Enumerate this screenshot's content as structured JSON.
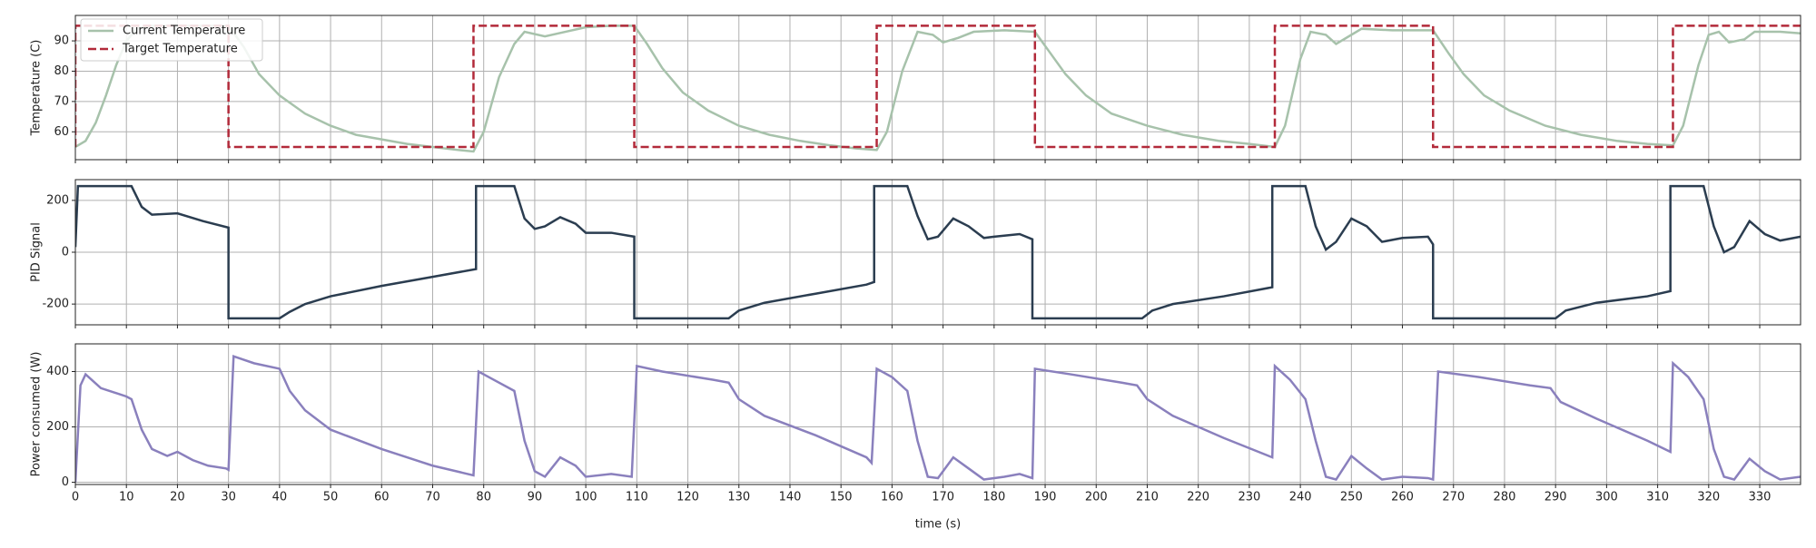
{
  "chart_data": [
    {
      "type": "line",
      "ylabel": "Temperature (C)",
      "legend": "upper left",
      "grid": true,
      "xlim": [
        0,
        338
      ],
      "xticks": [
        0,
        10,
        20,
        30,
        40,
        50,
        60,
        70,
        80,
        90,
        100,
        110,
        120,
        130,
        140,
        150,
        160,
        170,
        180,
        190,
        200,
        210,
        220,
        230,
        240,
        250,
        260,
        270,
        280,
        290,
        300,
        310,
        320,
        330
      ],
      "ylim": [
        50.8,
        98.4
      ],
      "yticks": [
        60,
        70,
        80,
        90
      ],
      "x": [
        0,
        0,
        2,
        4,
        6,
        8,
        10,
        12,
        15,
        20,
        25,
        30,
        30,
        33,
        36,
        40,
        45,
        50,
        55,
        60,
        65,
        70,
        75,
        78,
        78,
        80,
        83,
        86,
        88,
        92,
        96,
        100,
        105,
        109.5,
        109.5,
        112,
        115,
        119,
        124,
        130,
        136,
        142,
        148,
        153,
        157,
        157,
        159,
        162,
        165,
        168,
        170,
        173,
        176,
        182,
        188,
        188,
        191,
        194,
        198,
        203,
        210,
        217,
        224,
        230,
        235,
        235,
        237,
        240,
        242,
        245,
        247,
        250,
        252,
        258,
        266,
        266,
        269,
        272,
        276,
        281,
        288,
        295,
        302,
        308,
        313,
        313,
        315,
        318,
        320,
        322,
        324,
        327,
        329,
        334,
        338
      ],
      "series": [
        {
          "name": "Current Temperature",
          "color": "#a7c2ab",
          "linestyle": "solid",
          "values": [
            55,
            55,
            57,
            63,
            72,
            82,
            90,
            94,
            95,
            95,
            95,
            95,
            95,
            88,
            79,
            72,
            66,
            62,
            59,
            57.5,
            56,
            55,
            54,
            53.5,
            53.5,
            60,
            78,
            89,
            93,
            91.5,
            93,
            94.5,
            95,
            95,
            95,
            89,
            81,
            73,
            67,
            62,
            59,
            57,
            55.5,
            54.5,
            54,
            54,
            60,
            80,
            93,
            92,
            89.5,
            91,
            93,
            93.5,
            93,
            93,
            86,
            79,
            72,
            66,
            62,
            59,
            57,
            56,
            55,
            55,
            62,
            84,
            93,
            92,
            89,
            92,
            94,
            93.5,
            93.5,
            93.5,
            86,
            79,
            72,
            67,
            62,
            59,
            57,
            56,
            55.5,
            55.5,
            62,
            82,
            92,
            93,
            89.5,
            90.5,
            93,
            93,
            92.5
          ]
        },
        {
          "name": "Target Temperature",
          "color": "#b22a3a",
          "linestyle": "dashed",
          "values": [
            55,
            95,
            95,
            95,
            95,
            95,
            95,
            95,
            95,
            95,
            95,
            95,
            55,
            55,
            55,
            55,
            55,
            55,
            55,
            55,
            55,
            55,
            55,
            55,
            95,
            95,
            95,
            95,
            95,
            95,
            95,
            95,
            95,
            95,
            55,
            55,
            55,
            55,
            55,
            55,
            55,
            55,
            55,
            55,
            55,
            95,
            95,
            95,
            95,
            95,
            95,
            95,
            95,
            95,
            95,
            55,
            55,
            55,
            55,
            55,
            55,
            55,
            55,
            55,
            55,
            95,
            95,
            95,
            95,
            95,
            95,
            95,
            95,
            95,
            95,
            55,
            55,
            55,
            55,
            55,
            55,
            55,
            55,
            55,
            55,
            95,
            95,
            95,
            95,
            95,
            95,
            95,
            95,
            95,
            95
          ]
        }
      ]
    },
    {
      "type": "line",
      "ylabel": "PID Signal",
      "grid": true,
      "xlim": [
        0,
        338
      ],
      "xticks": [
        0,
        10,
        20,
        30,
        40,
        50,
        60,
        70,
        80,
        90,
        100,
        110,
        120,
        130,
        140,
        150,
        160,
        170,
        180,
        190,
        200,
        210,
        220,
        230,
        240,
        250,
        260,
        270,
        280,
        290,
        300,
        310,
        320,
        330
      ],
      "ylim": [
        -280,
        280
      ],
      "yticks": [
        -200,
        0,
        200
      ],
      "x": [
        0,
        0.5,
        1,
        11,
        13,
        15,
        20,
        25,
        30,
        30,
        40,
        42,
        45,
        50,
        60,
        70,
        78.5,
        78.5,
        86,
        88,
        90,
        92,
        95,
        98,
        100,
        105,
        109.5,
        109.5,
        128,
        130,
        135,
        145,
        155,
        156.5,
        156.5,
        163,
        165,
        167,
        169,
        172,
        175,
        178,
        180,
        185,
        187.5,
        187.5,
        209,
        211,
        215,
        225,
        234.5,
        234.5,
        241,
        243,
        245,
        247,
        250,
        253,
        256,
        260,
        265,
        266,
        266,
        290,
        292,
        298,
        308,
        312.5,
        312.5,
        319,
        321,
        323,
        325,
        328,
        331,
        334,
        338
      ],
      "series": [
        {
          "color": "#2b3d50",
          "linestyle": "solid",
          "values": [
            20,
            255,
            255,
            255,
            175,
            145,
            150,
            120,
            95,
            -255,
            -255,
            -230,
            -200,
            -170,
            -130,
            -95,
            -65,
            255,
            255,
            130,
            90,
            100,
            135,
            110,
            75,
            75,
            60,
            -255,
            -255,
            -225,
            -195,
            -160,
            -125,
            -115,
            255,
            255,
            140,
            50,
            60,
            130,
            100,
            55,
            60,
            70,
            50,
            -255,
            -255,
            -225,
            -200,
            -170,
            -135,
            255,
            255,
            100,
            10,
            40,
            130,
            100,
            40,
            55,
            60,
            30,
            -255,
            -255,
            -225,
            -195,
            -170,
            -150,
            255,
            255,
            100,
            0,
            20,
            120,
            70,
            45,
            60
          ]
        }
      ]
    },
    {
      "type": "line",
      "ylabel": "Power consumed (W)",
      "xlabel": "time (s)",
      "grid": true,
      "xlim": [
        0,
        338
      ],
      "xticks": [
        0,
        10,
        20,
        30,
        40,
        50,
        60,
        70,
        80,
        90,
        100,
        110,
        120,
        130,
        140,
        150,
        160,
        170,
        180,
        190,
        200,
        210,
        220,
        230,
        240,
        250,
        260,
        270,
        280,
        290,
        300,
        310,
        320,
        330
      ],
      "ylim": [
        -8,
        500
      ],
      "yticks": [
        0,
        200,
        400
      ],
      "x": [
        0,
        1,
        2,
        5,
        10,
        11,
        13,
        15,
        18,
        20,
        23,
        26,
        29.5,
        30,
        31,
        35,
        40,
        42,
        45,
        50,
        60,
        70,
        78,
        79,
        82,
        86,
        88,
        90,
        92,
        95,
        98,
        100,
        105,
        109,
        110,
        115,
        125,
        128,
        130,
        135,
        145,
        155,
        156,
        157,
        160,
        163,
        165,
        167,
        169,
        172,
        175,
        178,
        182,
        185,
        187.5,
        188,
        195,
        205,
        208,
        210,
        215,
        225,
        234.5,
        235,
        238,
        241,
        243,
        245,
        247,
        250,
        253,
        256,
        260,
        265,
        266,
        267,
        275,
        285,
        289,
        291,
        298,
        308,
        312.5,
        313,
        316,
        319,
        321,
        323,
        325,
        328,
        331,
        334,
        338
      ],
      "series": [
        {
          "color": "#8a80bd",
          "linestyle": "solid",
          "values": [
            0,
            350,
            390,
            340,
            310,
            300,
            190,
            120,
            95,
            110,
            80,
            60,
            50,
            45,
            455,
            430,
            410,
            330,
            260,
            190,
            120,
            60,
            25,
            400,
            370,
            330,
            150,
            40,
            20,
            90,
            60,
            20,
            30,
            20,
            420,
            400,
            370,
            360,
            300,
            240,
            170,
            90,
            70,
            410,
            380,
            330,
            150,
            20,
            15,
            90,
            50,
            10,
            20,
            30,
            15,
            410,
            390,
            360,
            350,
            300,
            240,
            160,
            90,
            420,
            370,
            300,
            150,
            20,
            10,
            95,
            50,
            10,
            20,
            15,
            10,
            400,
            380,
            350,
            340,
            290,
            230,
            150,
            110,
            430,
            380,
            300,
            120,
            20,
            10,
            85,
            40,
            10,
            20
          ]
        }
      ]
    }
  ]
}
